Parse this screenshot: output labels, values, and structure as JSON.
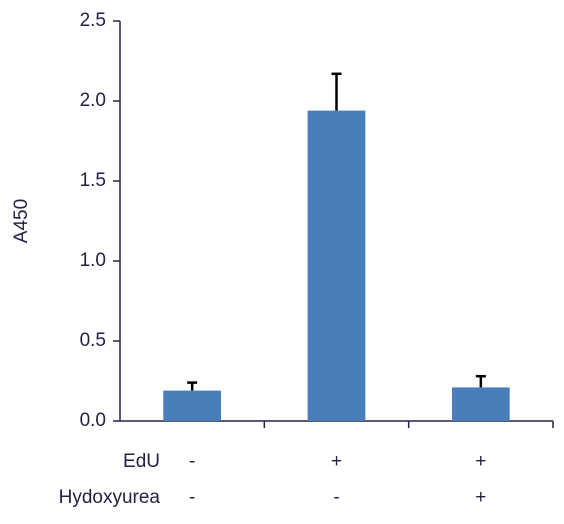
{
  "chart_data": {
    "type": "bar",
    "y_label": "A450",
    "category_row_labels": [
      "EdU",
      "Hydoxyurea"
    ],
    "categories": [
      [
        "-",
        "-"
      ],
      [
        "+",
        "-"
      ],
      [
        "+",
        "+"
      ]
    ],
    "values": [
      0.19,
      1.94,
      0.21
    ],
    "errors": [
      0.05,
      0.23,
      0.07
    ],
    "color": "#4a7ebb",
    "ylim": [
      0,
      2.5
    ],
    "yticks": [
      {
        "value": 0,
        "label": "0.0"
      },
      {
        "value": 0.5,
        "label": "0.5"
      },
      {
        "value": 1,
        "label": "1.0"
      },
      {
        "value": 1.5,
        "label": "1.5"
      },
      {
        "value": 2,
        "label": "2.0"
      },
      {
        "value": 2.5,
        "label": "2.5"
      }
    ],
    "grid": false
  }
}
